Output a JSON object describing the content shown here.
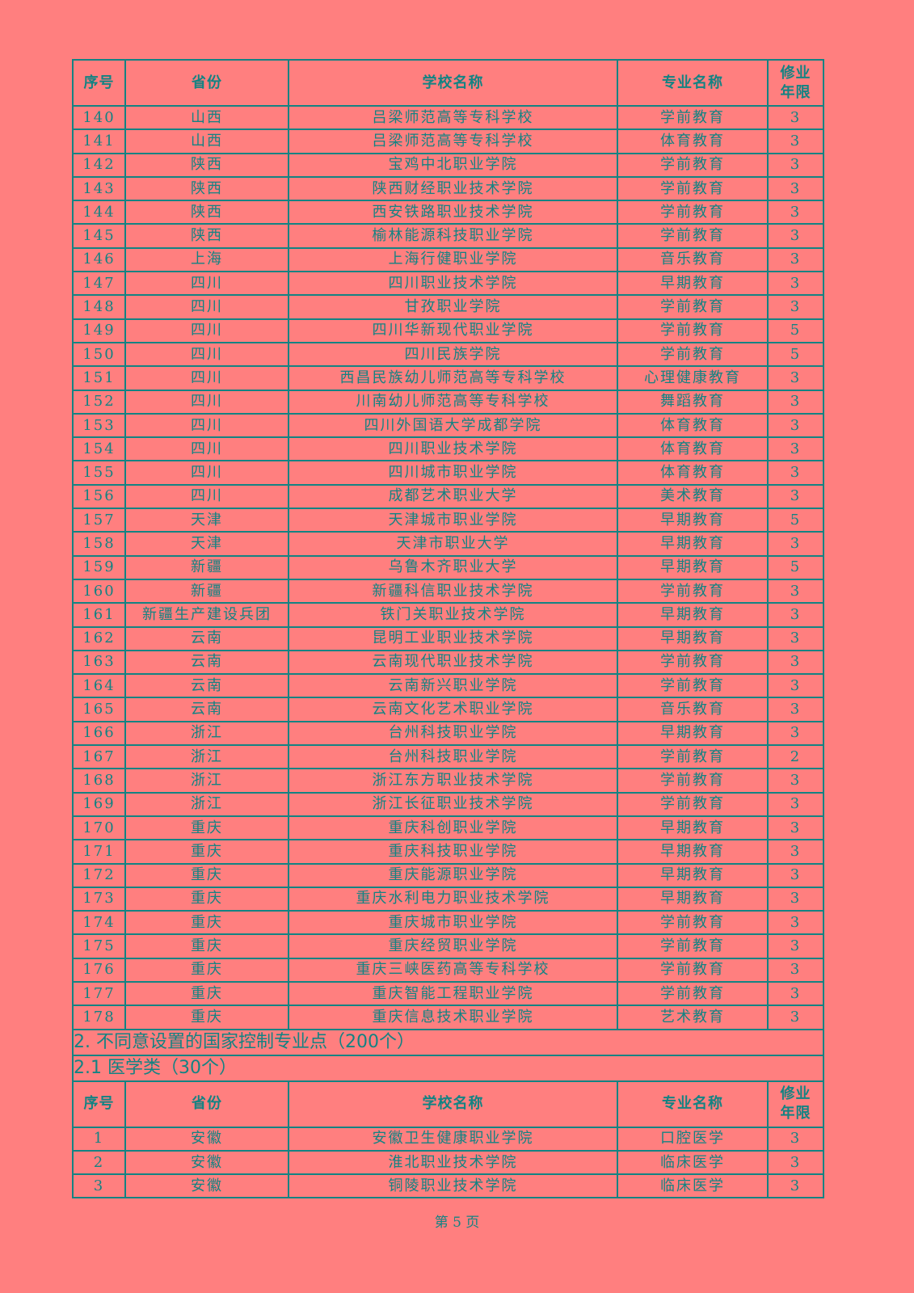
{
  "headers": {
    "no": "序号",
    "province": "省份",
    "school": "学校名称",
    "major": "专业名称",
    "years": "修业年限"
  },
  "rows1": [
    [
      "140",
      "山西",
      "吕梁师范高等专科学校",
      "学前教育",
      "3"
    ],
    [
      "141",
      "山西",
      "吕梁师范高等专科学校",
      "体育教育",
      "3"
    ],
    [
      "142",
      "陕西",
      "宝鸡中北职业学院",
      "学前教育",
      "3"
    ],
    [
      "143",
      "陕西",
      "陕西财经职业技术学院",
      "学前教育",
      "3"
    ],
    [
      "144",
      "陕西",
      "西安铁路职业技术学院",
      "学前教育",
      "3"
    ],
    [
      "145",
      "陕西",
      "榆林能源科技职业学院",
      "学前教育",
      "3"
    ],
    [
      "146",
      "上海",
      "上海行健职业学院",
      "音乐教育",
      "3"
    ],
    [
      "147",
      "四川",
      "四川职业技术学院",
      "早期教育",
      "3"
    ],
    [
      "148",
      "四川",
      "甘孜职业学院",
      "学前教育",
      "3"
    ],
    [
      "149",
      "四川",
      "四川华新现代职业学院",
      "学前教育",
      "5"
    ],
    [
      "150",
      "四川",
      "四川民族学院",
      "学前教育",
      "5"
    ],
    [
      "151",
      "四川",
      "西昌民族幼儿师范高等专科学校",
      "心理健康教育",
      "3"
    ],
    [
      "152",
      "四川",
      "川南幼儿师范高等专科学校",
      "舞蹈教育",
      "3"
    ],
    [
      "153",
      "四川",
      "四川外国语大学成都学院",
      "体育教育",
      "3"
    ],
    [
      "154",
      "四川",
      "四川职业技术学院",
      "体育教育",
      "3"
    ],
    [
      "155",
      "四川",
      "四川城市职业学院",
      "体育教育",
      "3"
    ],
    [
      "156",
      "四川",
      "成都艺术职业大学",
      "美术教育",
      "3"
    ],
    [
      "157",
      "天津",
      "天津城市职业学院",
      "早期教育",
      "5"
    ],
    [
      "158",
      "天津",
      "天津市职业大学",
      "早期教育",
      "3"
    ],
    [
      "159",
      "新疆",
      "乌鲁木齐职业大学",
      "早期教育",
      "5"
    ],
    [
      "160",
      "新疆",
      "新疆科信职业技术学院",
      "学前教育",
      "3"
    ],
    [
      "161",
      "新疆生产建设兵团",
      "铁门关职业技术学院",
      "早期教育",
      "3"
    ],
    [
      "162",
      "云南",
      "昆明工业职业技术学院",
      "早期教育",
      "3"
    ],
    [
      "163",
      "云南",
      "云南现代职业技术学院",
      "学前教育",
      "3"
    ],
    [
      "164",
      "云南",
      "云南新兴职业学院",
      "学前教育",
      "3"
    ],
    [
      "165",
      "云南",
      "云南文化艺术职业学院",
      "音乐教育",
      "3"
    ],
    [
      "166",
      "浙江",
      "台州科技职业学院",
      "早期教育",
      "3"
    ],
    [
      "167",
      "浙江",
      "台州科技职业学院",
      "学前教育",
      "2"
    ],
    [
      "168",
      "浙江",
      "浙江东方职业技术学院",
      "学前教育",
      "3"
    ],
    [
      "169",
      "浙江",
      "浙江长征职业技术学院",
      "学前教育",
      "3"
    ],
    [
      "170",
      "重庆",
      "重庆科创职业学院",
      "早期教育",
      "3"
    ],
    [
      "171",
      "重庆",
      "重庆科技职业学院",
      "早期教育",
      "3"
    ],
    [
      "172",
      "重庆",
      "重庆能源职业学院",
      "早期教育",
      "3"
    ],
    [
      "173",
      "重庆",
      "重庆水利电力职业技术学院",
      "早期教育",
      "3"
    ],
    [
      "174",
      "重庆",
      "重庆城市职业学院",
      "学前教育",
      "3"
    ],
    [
      "175",
      "重庆",
      "重庆经贸职业学院",
      "学前教育",
      "3"
    ],
    [
      "176",
      "重庆",
      "重庆三峡医药高等专科学校",
      "学前教育",
      "3"
    ],
    [
      "177",
      "重庆",
      "重庆智能工程职业学院",
      "学前教育",
      "3"
    ],
    [
      "178",
      "重庆",
      "重庆信息技术职业学院",
      "艺术教育",
      "3"
    ]
  ],
  "section2": "2. 不同意设置的国家控制专业点（200个）",
  "section21": "2.1 医学类（30个）",
  "rows2": [
    [
      "1",
      "安徽",
      "安徽卫生健康职业学院",
      "口腔医学",
      "3"
    ],
    [
      "2",
      "安徽",
      "淮北职业技术学院",
      "临床医学",
      "3"
    ],
    [
      "3",
      "安徽",
      "铜陵职业技术学院",
      "临床医学",
      "3"
    ]
  ],
  "footer": "第 5 页"
}
